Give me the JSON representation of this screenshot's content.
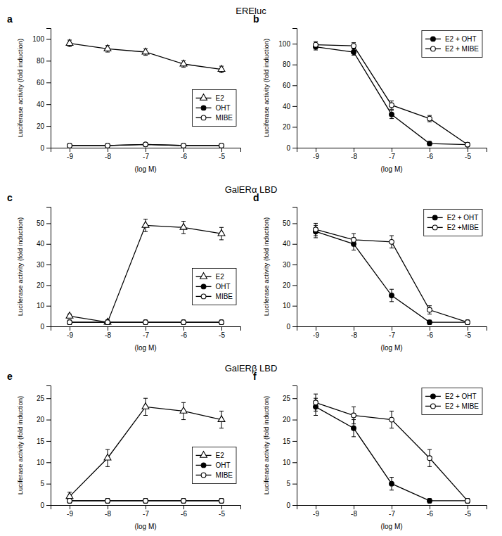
{
  "chart_data": [
    {
      "type": "line",
      "title": "EREluc",
      "annotations": [
        "a"
      ],
      "x_label": "(log M)",
      "y_label": "Luciferase activity (fold induction)",
      "x": [
        -9,
        -8,
        -7,
        -6,
        -5
      ],
      "xlim": [
        -9.5,
        -4.5
      ],
      "xticks": [
        -9,
        -8,
        -7,
        -6,
        -5
      ],
      "ylim": [
        0,
        110
      ],
      "yticks": [
        0,
        20,
        40,
        60,
        80,
        100
      ],
      "grid": false,
      "legend": "lower right",
      "series": [
        {
          "name": "E2",
          "color": "#000000",
          "marker": "triangle-open",
          "values": [
            96,
            91,
            88,
            77,
            72
          ],
          "errors": [
            3,
            3,
            3,
            3,
            3
          ]
        },
        {
          "name": "OHT",
          "color": "#000000",
          "marker": "circle",
          "values": [
            2,
            2,
            3,
            2,
            2
          ],
          "errors": [
            1,
            1,
            1,
            1,
            1
          ]
        },
        {
          "name": "MIBE",
          "color": "#000000",
          "marker": "circle-open",
          "values": [
            2,
            2,
            3,
            2,
            2
          ],
          "errors": [
            1,
            1,
            1,
            1,
            1
          ]
        }
      ]
    },
    {
      "type": "line",
      "annotations": [
        "b"
      ],
      "x_label": "(log M)",
      "y_label": "Luciferase activity (fold induction)",
      "x": [
        -9,
        -8,
        -7,
        -6,
        -5
      ],
      "xlim": [
        -9.5,
        -4.5
      ],
      "xticks": [
        -9,
        -8,
        -7,
        -6,
        -5
      ],
      "ylim": [
        0,
        115
      ],
      "yticks": [
        0,
        20,
        40,
        60,
        80,
        100
      ],
      "grid": false,
      "legend": "upper right",
      "series": [
        {
          "name": "E2 + OHT",
          "color": "#000000",
          "marker": "circle",
          "values": [
            97,
            92,
            32,
            4,
            3
          ],
          "errors": [
            3,
            3,
            4,
            2,
            2
          ]
        },
        {
          "name": "E2 + MIBE",
          "color": "#000000",
          "marker": "circle-open",
          "values": [
            99,
            98,
            41,
            28,
            3
          ],
          "errors": [
            3,
            3,
            4,
            3,
            2
          ]
        }
      ]
    },
    {
      "type": "line",
      "title": "GalERα LBD",
      "annotations": [
        "c"
      ],
      "x_label": "(log M)",
      "y_label": "Luciferase activity (fold induction)",
      "x": [
        -9,
        -8,
        -7,
        -6,
        -5
      ],
      "xlim": [
        -9.5,
        -4.5
      ],
      "xticks": [
        -9,
        -8,
        -7,
        -6,
        -5
      ],
      "ylim": [
        0,
        58
      ],
      "yticks": [
        0,
        10,
        20,
        30,
        40,
        50
      ],
      "grid": false,
      "legend": "lower right",
      "series": [
        {
          "name": "E2",
          "color": "#000000",
          "marker": "triangle-open",
          "values": [
            5,
            2,
            49,
            48,
            45
          ],
          "errors": [
            1,
            1,
            3,
            3,
            3
          ]
        },
        {
          "name": "OHT",
          "color": "#000000",
          "marker": "circle",
          "values": [
            2,
            2,
            2,
            2,
            2
          ],
          "errors": [
            1,
            1,
            1,
            1,
            1
          ]
        },
        {
          "name": "MIBE",
          "color": "#000000",
          "marker": "circle-open",
          "values": [
            2,
            2,
            2,
            2,
            2
          ],
          "errors": [
            1,
            1,
            1,
            1,
            1
          ]
        }
      ]
    },
    {
      "type": "line",
      "annotations": [
        "d"
      ],
      "x_label": "(log M)",
      "y_label": "Luciferase activity (fold induction)",
      "x": [
        -9,
        -8,
        -7,
        -6,
        -5
      ],
      "xlim": [
        -9.5,
        -4.5
      ],
      "xticks": [
        -9,
        -8,
        -7,
        -6,
        -5
      ],
      "ylim": [
        0,
        58
      ],
      "yticks": [
        0,
        10,
        20,
        30,
        40,
        50
      ],
      "grid": false,
      "legend": "upper right",
      "series": [
        {
          "name": "E2 + OHT",
          "color": "#000000",
          "marker": "circle",
          "values": [
            46,
            40,
            15,
            2,
            2
          ],
          "errors": [
            3,
            3,
            3,
            1,
            1
          ]
        },
        {
          "name": "E2 +MIBE",
          "color": "#000000",
          "marker": "circle-open",
          "values": [
            47,
            42,
            41,
            8,
            2
          ],
          "errors": [
            3,
            3,
            3,
            2,
            1
          ]
        }
      ]
    },
    {
      "type": "line",
      "title": "GalERβ LBD",
      "annotations": [
        "e"
      ],
      "x_label": "(log M)",
      "y_label": "Luciferase activity (fold induction)",
      "x": [
        -9,
        -8,
        -7,
        -6,
        -5
      ],
      "xlim": [
        -9.5,
        -4.5
      ],
      "xticks": [
        -9,
        -8,
        -7,
        -6,
        -5
      ],
      "ylim": [
        0,
        28
      ],
      "yticks": [
        0,
        5,
        10,
        15,
        20,
        25
      ],
      "grid": false,
      "legend": "lower right",
      "series": [
        {
          "name": "E2",
          "color": "#000000",
          "marker": "triangle-open",
          "values": [
            2,
            11,
            23,
            22,
            20
          ],
          "errors": [
            1,
            2,
            2,
            2,
            2
          ]
        },
        {
          "name": "OHT",
          "color": "#000000",
          "marker": "circle",
          "values": [
            1,
            1,
            1,
            1,
            1
          ],
          "errors": [
            0.5,
            0.5,
            0.5,
            0.5,
            0.5
          ]
        },
        {
          "name": "MIBE",
          "color": "#000000",
          "marker": "circle-open",
          "values": [
            1,
            1,
            1,
            1,
            1
          ],
          "errors": [
            0.5,
            0.5,
            0.5,
            0.5,
            0.5
          ]
        }
      ]
    },
    {
      "type": "line",
      "annotations": [
        "f"
      ],
      "x_label": "(log M)",
      "y_label": "Luciferase activity (fold induction)",
      "x": [
        -9,
        -8,
        -7,
        -6,
        -5
      ],
      "xlim": [
        -9.5,
        -4.5
      ],
      "xticks": [
        -9,
        -8,
        -7,
        -6,
        -5
      ],
      "ylim": [
        0,
        28
      ],
      "yticks": [
        0,
        5,
        10,
        15,
        20,
        25
      ],
      "grid": false,
      "legend": "upper right",
      "series": [
        {
          "name": "E2 + OHT",
          "color": "#000000",
          "marker": "circle",
          "values": [
            23,
            18,
            5,
            1,
            1
          ],
          "errors": [
            2,
            2,
            1.5,
            0.5,
            0.5
          ]
        },
        {
          "name": "E2 + MIBE",
          "color": "#000000",
          "marker": "circle-open",
          "values": [
            24,
            21,
            20,
            11,
            1
          ],
          "errors": [
            2,
            2,
            2,
            2,
            0.5
          ]
        }
      ]
    }
  ]
}
